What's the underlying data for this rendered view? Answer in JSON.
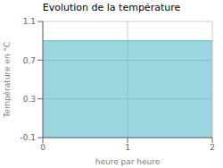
{
  "chart_data": {
    "type": "area",
    "title": "Evolution de la température",
    "xlabel": "heure par heure",
    "ylabel": "Température en °C",
    "x": [
      0,
      2
    ],
    "values": [
      0.9,
      0.9
    ],
    "color": "#55bbcc",
    "xlim": [
      0,
      2
    ],
    "xticks": [
      0,
      1,
      2
    ],
    "ylim": [
      -0.1,
      1.1
    ],
    "yticks": [
      -0.1,
      0.3,
      0.7,
      1.1
    ],
    "grid": true
  }
}
